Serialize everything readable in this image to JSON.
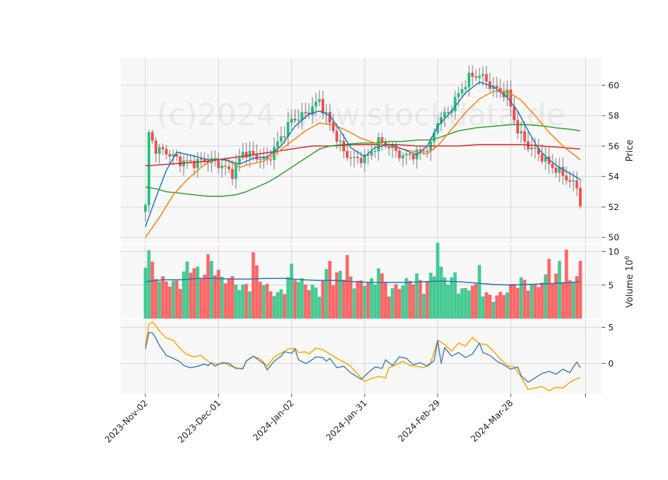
{
  "watermark": "(c)2024 www.stockdata.de",
  "chart_data": {
    "type": "candlestick",
    "x_tick_labels": [
      "2023-Nov-02",
      "2023-Dec-01",
      "2024-Jan-02",
      "2024-Jan-31",
      "2024-Feb-29",
      "2024-Mar-28"
    ],
    "x_tick_index": [
      0,
      21,
      42,
      63,
      84,
      105
    ],
    "n_days": 126,
    "colors": {
      "up": "#26c281",
      "down": "#ff4d4d",
      "sma_fast": "#1f77b4",
      "sma_mid": "#ff7f0e",
      "sma_slow": "#2ca02c",
      "sma_long": "#d62728",
      "vol_ma": "#1f77b4",
      "osc_a": "#4682b4",
      "osc_b": "#ffa500",
      "grid": "#cccccc",
      "panel_bg": "#f8f8f8"
    },
    "panels": [
      {
        "name": "price",
        "ylabel": "Price",
        "ylim": [
          49.6,
          61.8
        ],
        "yticks": [
          50,
          52,
          54,
          56,
          58,
          60
        ]
      },
      {
        "name": "volume",
        "ylabel": "Volume  10^6",
        "ylim": [
          0,
          11
        ],
        "yticks": [
          5,
          10
        ]
      },
      {
        "name": "oscillator",
        "ylabel": "",
        "ylim": [
          -4.2,
          6.0
        ],
        "yticks": [
          0,
          5
        ]
      }
    ],
    "price_path": [
      [
        0,
        52.0
      ],
      [
        1,
        56.8
      ],
      [
        3,
        55.8
      ],
      [
        6,
        55.6
      ],
      [
        10,
        55.0
      ],
      [
        14,
        54.9
      ],
      [
        18,
        55.1
      ],
      [
        22,
        54.7
      ],
      [
        25,
        54.2
      ],
      [
        28,
        55.6
      ],
      [
        32,
        55.3
      ],
      [
        35,
        55.0
      ],
      [
        38,
        56.2
      ],
      [
        42,
        57.7
      ],
      [
        46,
        58.1
      ],
      [
        50,
        59.0
      ],
      [
        53,
        57.5
      ],
      [
        57,
        55.6
      ],
      [
        60,
        55.1
      ],
      [
        64,
        55.3
      ],
      [
        67,
        56.3
      ],
      [
        70,
        56.0
      ],
      [
        74,
        55.3
      ],
      [
        78,
        55.5
      ],
      [
        82,
        56.0
      ],
      [
        84,
        57.7
      ],
      [
        87,
        58.2
      ],
      [
        90,
        59.4
      ],
      [
        93,
        60.5
      ],
      [
        96,
        60.7
      ],
      [
        100,
        59.8
      ],
      [
        104,
        59.4
      ],
      [
        107,
        57.0
      ],
      [
        110,
        56.0
      ],
      [
        113,
        55.5
      ],
      [
        116,
        54.8
      ],
      [
        119,
        54.3
      ],
      [
        122,
        53.7
      ],
      [
        124,
        53.3
      ],
      [
        125,
        52.3
      ]
    ],
    "sma_fast_path": [
      [
        0,
        50.7
      ],
      [
        3,
        52.6
      ],
      [
        6,
        54.4
      ],
      [
        9,
        55.6
      ],
      [
        13,
        55.4
      ],
      [
        18,
        55.1
      ],
      [
        23,
        55.1
      ],
      [
        27,
        54.8
      ],
      [
        31,
        55.2
      ],
      [
        35,
        55.3
      ],
      [
        39,
        56.0
      ],
      [
        43,
        57.3
      ],
      [
        47,
        58.1
      ],
      [
        50,
        58.3
      ],
      [
        53,
        58.0
      ],
      [
        56,
        57.0
      ],
      [
        59,
        55.9
      ],
      [
        63,
        55.3
      ],
      [
        66,
        55.9
      ],
      [
        70,
        56.1
      ],
      [
        74,
        55.8
      ],
      [
        78,
        55.4
      ],
      [
        81,
        56.0
      ],
      [
        84,
        57.3
      ],
      [
        88,
        58.3
      ],
      [
        92,
        59.5
      ],
      [
        96,
        60.2
      ],
      [
        100,
        59.9
      ],
      [
        104,
        59.2
      ],
      [
        107,
        58.3
      ],
      [
        110,
        57.0
      ],
      [
        113,
        55.8
      ],
      [
        116,
        55.1
      ],
      [
        119,
        54.6
      ],
      [
        122,
        54.2
      ],
      [
        125,
        53.8
      ]
    ],
    "sma_mid_path": [
      [
        0,
        50.0
      ],
      [
        4,
        51.3
      ],
      [
        8,
        52.8
      ],
      [
        12,
        53.8
      ],
      [
        16,
        54.6
      ],
      [
        20,
        55.2
      ],
      [
        24,
        55.0
      ],
      [
        27,
        54.6
      ],
      [
        30,
        54.8
      ],
      [
        34,
        55.0
      ],
      [
        38,
        55.6
      ],
      [
        42,
        56.3
      ],
      [
        46,
        57.0
      ],
      [
        50,
        57.5
      ],
      [
        54,
        57.4
      ],
      [
        58,
        57.0
      ],
      [
        62,
        56.5
      ],
      [
        66,
        56.2
      ],
      [
        70,
        56.0
      ],
      [
        74,
        55.8
      ],
      [
        78,
        55.6
      ],
      [
        81,
        55.5
      ],
      [
        84,
        56.0
      ],
      [
        88,
        57.1
      ],
      [
        92,
        58.2
      ],
      [
        96,
        59.1
      ],
      [
        100,
        59.6
      ],
      [
        104,
        59.6
      ],
      [
        108,
        59.0
      ],
      [
        112,
        58.0
      ],
      [
        116,
        56.9
      ],
      [
        120,
        56.0
      ],
      [
        125,
        55.1
      ]
    ],
    "sma_slow_path": [
      [
        0,
        53.3
      ],
      [
        3,
        53.2
      ],
      [
        6,
        53.0
      ],
      [
        10,
        52.9
      ],
      [
        14,
        52.8
      ],
      [
        18,
        52.7
      ],
      [
        22,
        52.7
      ],
      [
        26,
        52.8
      ],
      [
        29,
        53.0
      ],
      [
        32,
        53.3
      ],
      [
        35,
        53.6
      ],
      [
        38,
        54.0
      ],
      [
        42,
        54.6
      ],
      [
        46,
        55.2
      ],
      [
        50,
        55.8
      ],
      [
        53,
        56.0
      ],
      [
        57,
        56.1
      ],
      [
        62,
        56.2
      ],
      [
        66,
        56.2
      ],
      [
        70,
        56.3
      ],
      [
        74,
        56.3
      ],
      [
        78,
        56.4
      ],
      [
        82,
        56.4
      ],
      [
        85,
        56.6
      ],
      [
        90,
        57.0
      ],
      [
        95,
        57.2
      ],
      [
        100,
        57.3
      ],
      [
        105,
        57.4
      ],
      [
        110,
        57.4
      ],
      [
        115,
        57.3
      ],
      [
        118,
        57.2
      ],
      [
        122,
        57.1
      ],
      [
        125,
        57.0
      ]
    ],
    "sma_long_path": [
      [
        0,
        54.7
      ],
      [
        6,
        54.8
      ],
      [
        12,
        54.9
      ],
      [
        18,
        55.0
      ],
      [
        24,
        55.2
      ],
      [
        30,
        55.4
      ],
      [
        36,
        55.6
      ],
      [
        42,
        55.8
      ],
      [
        48,
        56.0
      ],
      [
        54,
        56.0
      ],
      [
        60,
        56.1
      ],
      [
        66,
        56.1
      ],
      [
        72,
        56.1
      ],
      [
        78,
        56.0
      ],
      [
        84,
        56.0
      ],
      [
        90,
        56.0
      ],
      [
        96,
        56.1
      ],
      [
        102,
        56.1
      ],
      [
        108,
        56.1
      ],
      [
        114,
        56.0
      ],
      [
        120,
        55.9
      ],
      [
        125,
        55.8
      ]
    ],
    "volume_path": [
      [
        0,
        9.5
      ],
      [
        2,
        7.5
      ],
      [
        4,
        5.5
      ],
      [
        6,
        5.5
      ],
      [
        8,
        5.0
      ],
      [
        10,
        5.5
      ],
      [
        12,
        7.5
      ],
      [
        14,
        7.5
      ],
      [
        16,
        6.0
      ],
      [
        18,
        8.5
      ],
      [
        20,
        8.0
      ],
      [
        22,
        5.5
      ],
      [
        24,
        6.0
      ],
      [
        26,
        5.0
      ],
      [
        28,
        4.5
      ],
      [
        30,
        5.0
      ],
      [
        32,
        7.0
      ],
      [
        34,
        5.0
      ],
      [
        36,
        4.0
      ],
      [
        38,
        3.5
      ],
      [
        40,
        4.5
      ],
      [
        42,
        7.0
      ],
      [
        44,
        5.5
      ],
      [
        46,
        5.0
      ],
      [
        48,
        4.5
      ],
      [
        50,
        4.0
      ],
      [
        52,
        6.5
      ],
      [
        54,
        5.0
      ],
      [
        56,
        7.0
      ],
      [
        58,
        6.0
      ],
      [
        60,
        5.5
      ],
      [
        62,
        5.0
      ],
      [
        64,
        5.5
      ],
      [
        66,
        5.0
      ],
      [
        68,
        6.0
      ],
      [
        70,
        4.0
      ],
      [
        72,
        4.5
      ],
      [
        74,
        5.0
      ],
      [
        76,
        5.5
      ],
      [
        78,
        6.0
      ],
      [
        80,
        4.5
      ],
      [
        82,
        6.0
      ],
      [
        84,
        7.5
      ],
      [
        86,
        6.0
      ],
      [
        88,
        5.5
      ],
      [
        90,
        4.5
      ],
      [
        92,
        4.0
      ],
      [
        94,
        5.0
      ],
      [
        96,
        4.0
      ],
      [
        98,
        3.5
      ],
      [
        100,
        3.0
      ],
      [
        102,
        3.5
      ],
      [
        104,
        4.0
      ],
      [
        106,
        5.0
      ],
      [
        108,
        5.5
      ],
      [
        110,
        5.0
      ],
      [
        112,
        4.5
      ],
      [
        114,
        5.5
      ],
      [
        116,
        6.0
      ],
      [
        118,
        6.0
      ],
      [
        120,
        6.5
      ],
      [
        122,
        5.0
      ],
      [
        124,
        6.5
      ],
      [
        125,
        7.5
      ]
    ],
    "volume_spikes": [
      [
        1,
        10.2
      ],
      [
        19,
        8.6
      ],
      [
        31,
        9.9
      ],
      [
        42,
        8.2
      ],
      [
        53,
        8.6
      ],
      [
        58,
        9.5
      ],
      [
        67,
        7.5
      ],
      [
        84,
        11.3
      ],
      [
        89,
        6.9
      ],
      [
        96,
        8.0
      ],
      [
        116,
        8.9
      ],
      [
        119,
        8.6
      ],
      [
        121,
        10.3
      ]
    ],
    "volume_ma_path": [
      [
        0,
        5.5
      ],
      [
        5,
        5.8
      ],
      [
        10,
        5.8
      ],
      [
        15,
        6.0
      ],
      [
        20,
        6.0
      ],
      [
        25,
        5.9
      ],
      [
        30,
        5.9
      ],
      [
        35,
        6.0
      ],
      [
        40,
        6.0
      ],
      [
        45,
        5.8
      ],
      [
        50,
        5.7
      ],
      [
        55,
        5.7
      ],
      [
        60,
        5.5
      ],
      [
        65,
        5.4
      ],
      [
        70,
        5.4
      ],
      [
        75,
        5.4
      ],
      [
        80,
        5.5
      ],
      [
        85,
        5.6
      ],
      [
        90,
        5.5
      ],
      [
        95,
        5.3
      ],
      [
        100,
        5.1
      ],
      [
        105,
        5.0
      ],
      [
        110,
        5.1
      ],
      [
        115,
        5.2
      ],
      [
        120,
        5.3
      ],
      [
        125,
        5.5
      ]
    ],
    "osc_a_path": [
      [
        0,
        2.0
      ],
      [
        1,
        4.3
      ],
      [
        2,
        4.2
      ],
      [
        3,
        3.5
      ],
      [
        4,
        2.5
      ],
      [
        6,
        1.1
      ],
      [
        8,
        0.7
      ],
      [
        10,
        0.2
      ],
      [
        11,
        -0.3
      ],
      [
        13,
        -0.6
      ],
      [
        15,
        -0.4
      ],
      [
        17,
        -0.1
      ],
      [
        18,
        -0.3
      ],
      [
        19,
        0.1
      ],
      [
        20,
        -0.4
      ],
      [
        22,
        0.1
      ],
      [
        24,
        0.0
      ],
      [
        26,
        -0.7
      ],
      [
        28,
        -0.7
      ],
      [
        29,
        0.3
      ],
      [
        31,
        1.0
      ],
      [
        33,
        0.3
      ],
      [
        34,
        0.0
      ],
      [
        35,
        -0.9
      ],
      [
        37,
        0.3
      ],
      [
        39,
        1.0
      ],
      [
        40,
        1.6
      ],
      [
        42,
        1.4
      ],
      [
        43,
        2.0
      ],
      [
        44,
        0.5
      ],
      [
        46,
        0.0
      ],
      [
        47,
        0.2
      ],
      [
        49,
        0.9
      ],
      [
        51,
        0.8
      ],
      [
        52,
        0.3
      ],
      [
        53,
        0.7
      ],
      [
        55,
        -0.6
      ],
      [
        57,
        -0.4
      ],
      [
        59,
        -1.3
      ],
      [
        61,
        -1.9
      ],
      [
        62,
        -2.2
      ],
      [
        64,
        -1.3
      ],
      [
        66,
        -0.5
      ],
      [
        68,
        -0.7
      ],
      [
        69,
        0.5
      ],
      [
        71,
        -0.3
      ],
      [
        73,
        0.9
      ],
      [
        75,
        0.7
      ],
      [
        77,
        -0.2
      ],
      [
        79,
        0.1
      ],
      [
        81,
        -0.4
      ],
      [
        83,
        0.4
      ],
      [
        85,
        0.0
      ],
      [
        84,
        3.2
      ],
      [
        86,
        2.2
      ],
      [
        88,
        1.0
      ],
      [
        90,
        1.5
      ],
      [
        92,
        0.8
      ],
      [
        94,
        1.3
      ],
      [
        96,
        2.8
      ],
      [
        97,
        1.5
      ],
      [
        99,
        1.1
      ],
      [
        101,
        0.3
      ],
      [
        103,
        -0.2
      ],
      [
        105,
        -0.8
      ],
      [
        107,
        -0.5
      ],
      [
        108,
        -1.7
      ],
      [
        110,
        -2.6
      ],
      [
        112,
        -2.0
      ],
      [
        114,
        -1.4
      ],
      [
        116,
        -1.1
      ],
      [
        118,
        -1.5
      ],
      [
        120,
        -0.8
      ],
      [
        122,
        -1.3
      ],
      [
        123,
        -0.5
      ],
      [
        124,
        0.2
      ],
      [
        125,
        -0.6
      ]
    ],
    "osc_b_path": [
      [
        0,
        2.5
      ],
      [
        1,
        5.4
      ],
      [
        2,
        5.7
      ],
      [
        3,
        5.2
      ],
      [
        4,
        4.5
      ],
      [
        6,
        3.5
      ],
      [
        8,
        3.2
      ],
      [
        10,
        2.0
      ],
      [
        12,
        1.2
      ],
      [
        14,
        0.9
      ],
      [
        16,
        1.1
      ],
      [
        18,
        0.3
      ],
      [
        19,
        0.0
      ],
      [
        21,
        -0.1
      ],
      [
        23,
        0.0
      ],
      [
        24,
        -0.3
      ],
      [
        26,
        -0.6
      ],
      [
        28,
        -0.8
      ],
      [
        29,
        0.4
      ],
      [
        31,
        1.0
      ],
      [
        33,
        0.6
      ],
      [
        35,
        -0.4
      ],
      [
        37,
        0.9
      ],
      [
        39,
        1.4
      ],
      [
        41,
        2.0
      ],
      [
        43,
        2.1
      ],
      [
        44,
        1.5
      ],
      [
        46,
        1.6
      ],
      [
        47,
        1.3
      ],
      [
        49,
        2.1
      ],
      [
        51,
        1.9
      ],
      [
        53,
        1.3
      ],
      [
        55,
        0.7
      ],
      [
        57,
        0.2
      ],
      [
        59,
        -0.4
      ],
      [
        61,
        -1.5
      ],
      [
        63,
        -2.5
      ],
      [
        65,
        -2.1
      ],
      [
        67,
        -1.8
      ],
      [
        69,
        -2.0
      ],
      [
        70,
        -0.6
      ],
      [
        72,
        -0.2
      ],
      [
        74,
        0.3
      ],
      [
        76,
        -0.3
      ],
      [
        78,
        -0.4
      ],
      [
        80,
        -0.6
      ],
      [
        82,
        0.1
      ],
      [
        84,
        3.2
      ],
      [
        86,
        2.6
      ],
      [
        88,
        1.7
      ],
      [
        90,
        2.8
      ],
      [
        92,
        2.4
      ],
      [
        94,
        3.6
      ],
      [
        96,
        2.7
      ],
      [
        98,
        2.6
      ],
      [
        100,
        1.7
      ],
      [
        102,
        0.6
      ],
      [
        104,
        -0.3
      ],
      [
        106,
        -0.5
      ],
      [
        108,
        -1.9
      ],
      [
        110,
        -3.6
      ],
      [
        112,
        -3.4
      ],
      [
        114,
        -3.2
      ],
      [
        116,
        -3.8
      ],
      [
        118,
        -3.3
      ],
      [
        120,
        -3.4
      ],
      [
        122,
        -2.6
      ],
      [
        124,
        -2.1
      ],
      [
        125,
        -2.0
      ]
    ]
  }
}
